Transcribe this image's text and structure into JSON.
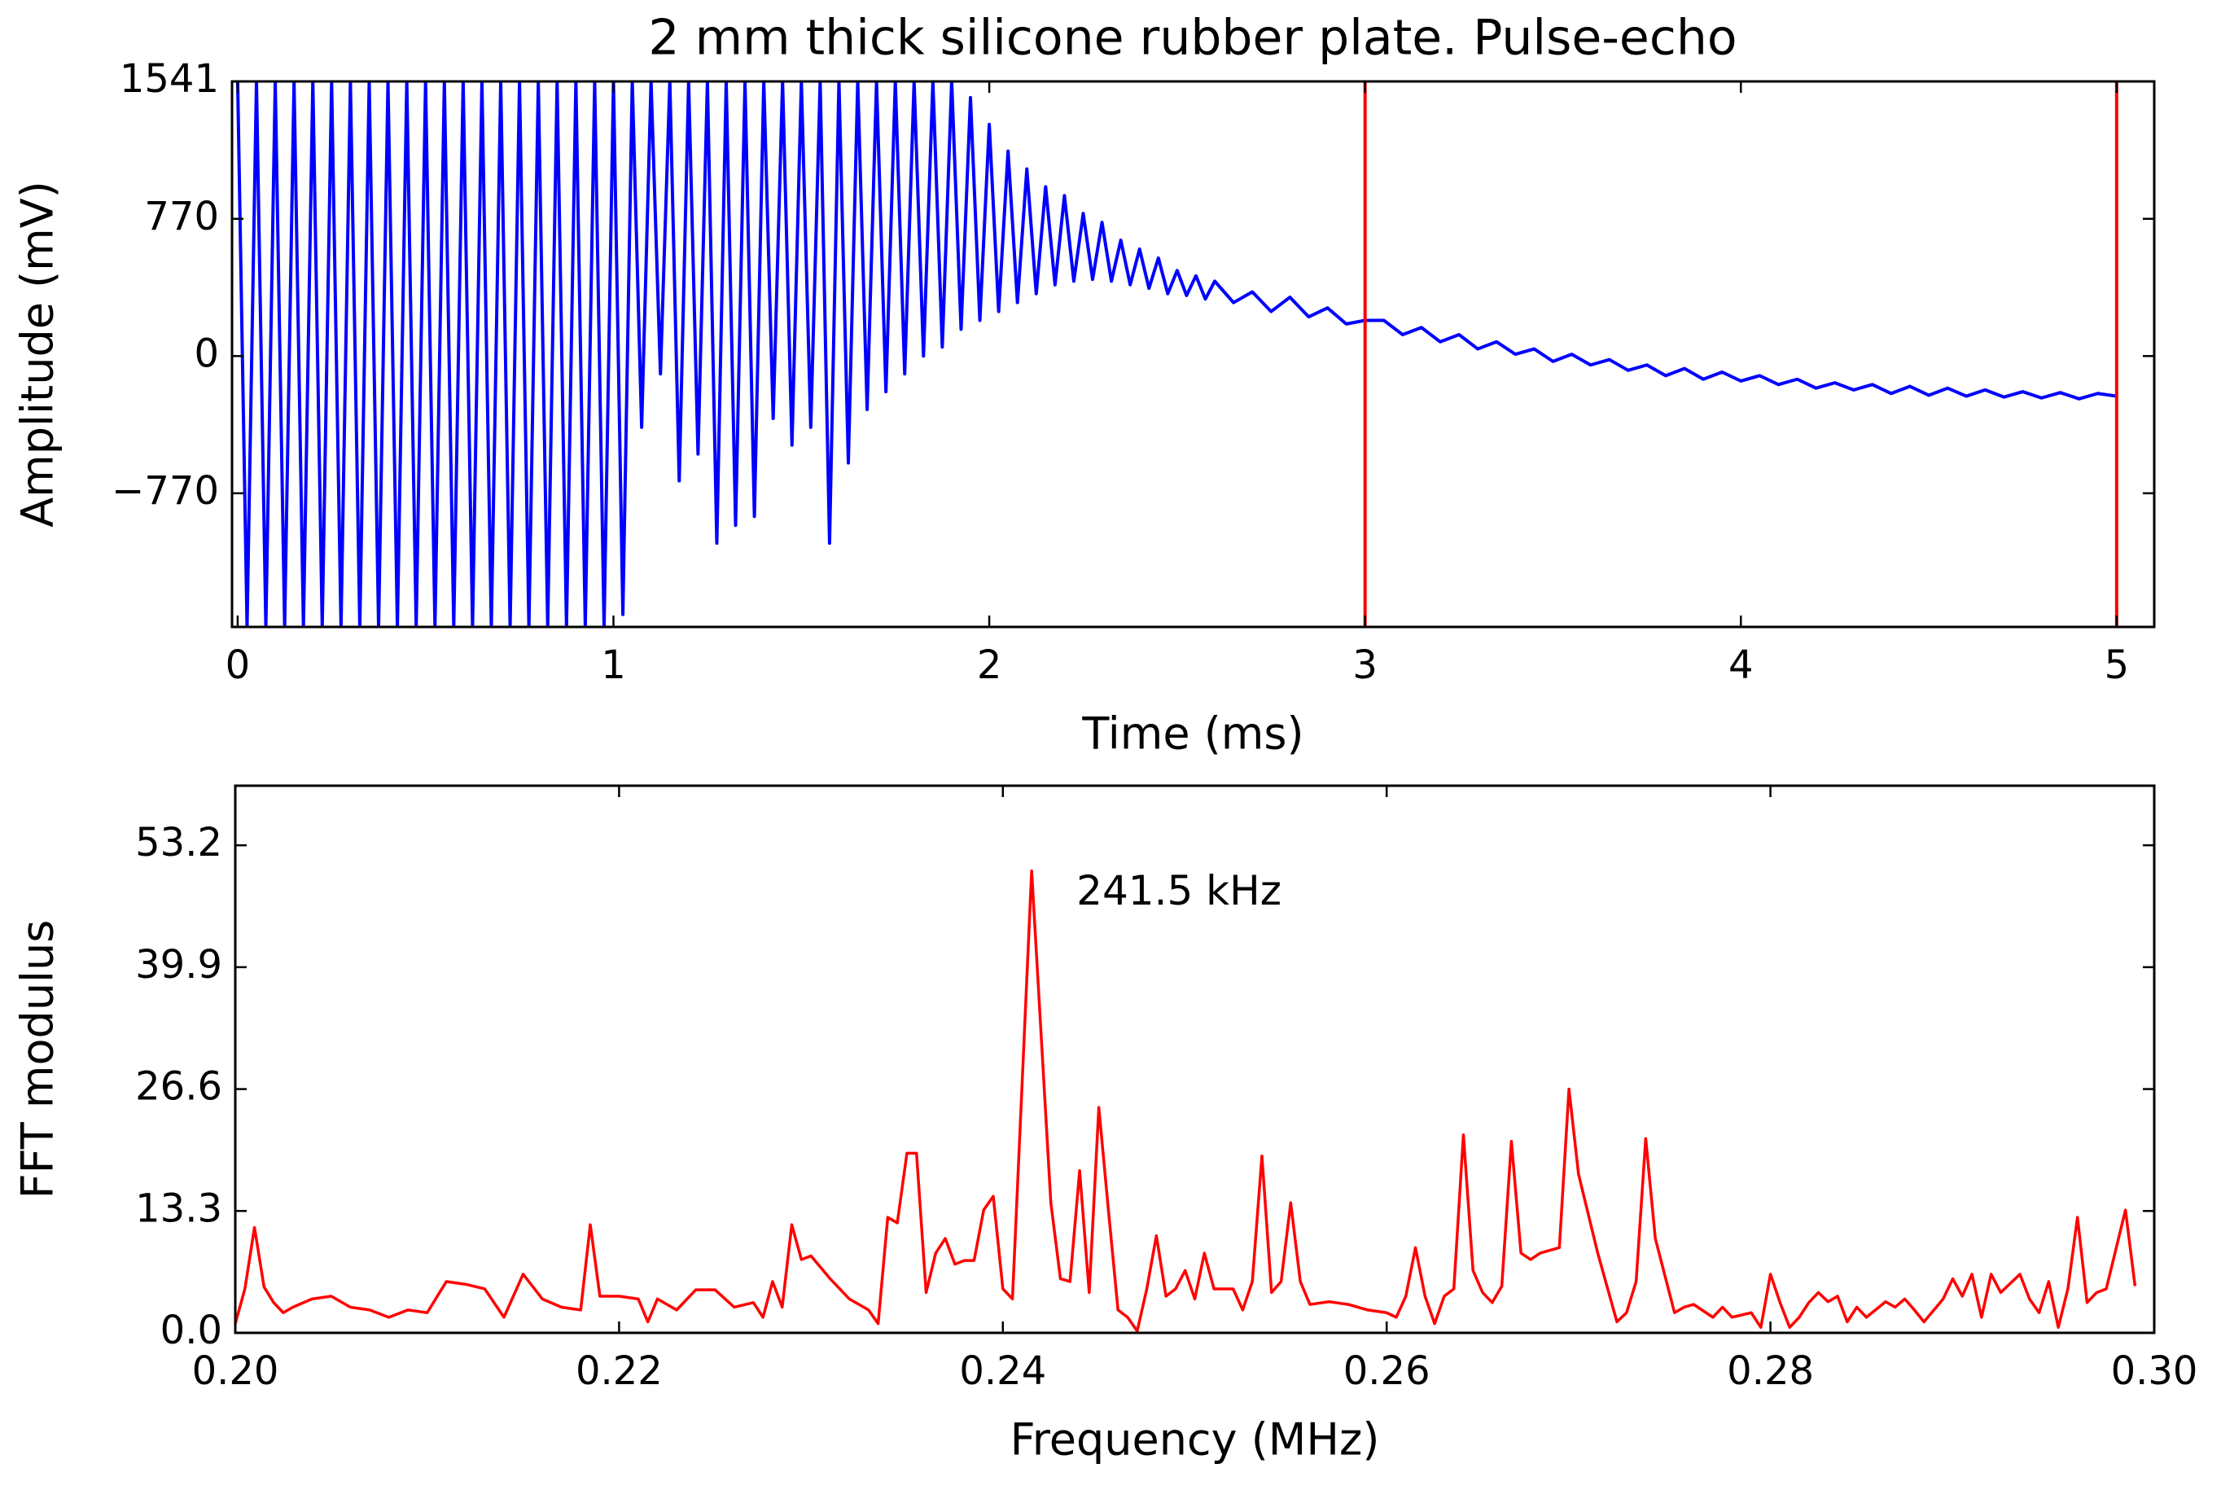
{
  "chart_data": [
    {
      "type": "line",
      "title": "2 mm thick silicone rubber plate. Pulse-echo",
      "xlabel": "Time (ms)",
      "ylabel": "Amplitude (mV)",
      "x": [
        0,
        0.025,
        0.05,
        0.075,
        0.1,
        0.125,
        0.15,
        0.175,
        0.2,
        0.225,
        0.25,
        0.275,
        0.3,
        0.325,
        0.35,
        0.375,
        0.4,
        0.425,
        0.45,
        0.475,
        0.5,
        0.525,
        0.55,
        0.575,
        0.6,
        0.625,
        0.65,
        0.675,
        0.7,
        0.725,
        0.75,
        0.775,
        0.8,
        0.825,
        0.85,
        0.875,
        0.9,
        0.925,
        0.95,
        0.975,
        1,
        1.025,
        1.05,
        1.075,
        1.1,
        1.125,
        1.15,
        1.175,
        1.2,
        1.225,
        1.25,
        1.275,
        1.3,
        1.325,
        1.35,
        1.375,
        1.4,
        1.425,
        1.45,
        1.475,
        1.5,
        1.525,
        1.55,
        1.575,
        1.6,
        1.625,
        1.65,
        1.675,
        1.7,
        1.725,
        1.75,
        1.775,
        1.8,
        1.825,
        1.85,
        1.875,
        1.9,
        1.925,
        1.95,
        1.975,
        2,
        2.025,
        2.05,
        2.075,
        2.1,
        2.125,
        2.15,
        2.175,
        2.2,
        2.225,
        2.25,
        2.275,
        2.3,
        2.325,
        2.35,
        2.375,
        2.4,
        2.425,
        2.45,
        2.475,
        2.5,
        2.525,
        2.55,
        2.575,
        2.6,
        2.65,
        2.7,
        2.75,
        2.8,
        2.85,
        2.9,
        2.95,
        3,
        3.05,
        3.1,
        3.15,
        3.2,
        3.25,
        3.3,
        3.35,
        3.4,
        3.45,
        3.5,
        3.55,
        3.6,
        3.65,
        3.7,
        3.75,
        3.8,
        3.85,
        3.9,
        3.95,
        4,
        4.05,
        4.1,
        4.15,
        4.2,
        4.25,
        4.3,
        4.35,
        4.4,
        4.45,
        4.5,
        4.55,
        4.6,
        4.65,
        4.7,
        4.75,
        4.8,
        4.85,
        4.9,
        4.95,
        5
      ],
      "series": [
        {
          "color": "#0000ff",
          "values": [
            1541,
            -1520,
            1541,
            -1520,
            1541,
            -1520,
            1541,
            -1520,
            1541,
            -1520,
            1541,
            -1520,
            1541,
            -1520,
            1541,
            -1520,
            1541,
            -1520,
            1541,
            -1520,
            1541,
            -1520,
            1541,
            -1520,
            1541,
            -1520,
            1541,
            -1520,
            1541,
            -1520,
            1541,
            -1520,
            1541,
            -1520,
            1541,
            -1520,
            1541,
            -1520,
            1541,
            -1520,
            1541,
            -1450,
            1541,
            -400,
            1541,
            -100,
            1541,
            -700,
            1541,
            -550,
            1541,
            -1050,
            1541,
            -950,
            1541,
            -900,
            1541,
            -350,
            1541,
            -500,
            1541,
            -400,
            1541,
            -1050,
            1541,
            -600,
            1541,
            -300,
            1541,
            -200,
            1541,
            -100,
            1541,
            0,
            1541,
            50,
            1541,
            150,
            1450,
            200,
            1300,
            250,
            1150,
            300,
            1050,
            350,
            950,
            400,
            900,
            420,
            800,
            430,
            750,
            420,
            650,
            400,
            600,
            380,
            550,
            350,
            480,
            340,
            450,
            320,
            420,
            300,
            360,
            250,
            330,
            220,
            270,
            180,
            200,
            200,
            120,
            160,
            80,
            120,
            40,
            80,
            10,
            40,
            -30,
            10,
            -50,
            -20,
            -80,
            -50,
            -110,
            -70,
            -130,
            -90,
            -140,
            -110,
            -160,
            -130,
            -180,
            -150,
            -190,
            -160,
            -210,
            -170,
            -220,
            -180,
            -225,
            -190,
            -230,
            -200,
            -235,
            -205,
            -240,
            -210,
            -225
          ]
        }
      ],
      "xlim": [
        -0.015,
        5.1
      ],
      "ylim": [
        -1520,
        1541
      ],
      "xticks": [
        0,
        1,
        2,
        3,
        4,
        5
      ],
      "yticks": [
        {
          "value": -770,
          "label": "−770"
        },
        0,
        770,
        1541
      ],
      "vlines": [
        3,
        5
      ],
      "vline_color": "#ff0000"
    },
    {
      "type": "line",
      "xlabel": "Frequency (MHz)",
      "ylabel": "FFT modulus",
      "annotation": "241.5 kHz",
      "x": [
        0.2,
        0.2005,
        0.201,
        0.2015,
        0.202,
        0.2025,
        0.203,
        0.204,
        0.205,
        0.206,
        0.207,
        0.208,
        0.209,
        0.21,
        0.211,
        0.212,
        0.213,
        0.214,
        0.215,
        0.216,
        0.217,
        0.218,
        0.2185,
        0.219,
        0.22,
        0.221,
        0.2215,
        0.222,
        0.223,
        0.224,
        0.225,
        0.226,
        0.227,
        0.2275,
        0.228,
        0.2285,
        0.229,
        0.2295,
        0.23,
        0.231,
        0.232,
        0.233,
        0.2335,
        0.234,
        0.2345,
        0.235,
        0.2355,
        0.236,
        0.2365,
        0.237,
        0.2375,
        0.238,
        0.2385,
        0.239,
        0.2395,
        0.24,
        0.2405,
        0.2415,
        0.2425,
        0.243,
        0.2435,
        0.244,
        0.2445,
        0.245,
        0.2455,
        0.246,
        0.2465,
        0.247,
        0.2475,
        0.248,
        0.2485,
        0.249,
        0.2495,
        0.25,
        0.2505,
        0.251,
        0.252,
        0.2525,
        0.253,
        0.2535,
        0.254,
        0.2545,
        0.255,
        0.2555,
        0.256,
        0.257,
        0.258,
        0.259,
        0.26,
        0.2605,
        0.261,
        0.2615,
        0.262,
        0.2625,
        0.263,
        0.2635,
        0.264,
        0.2645,
        0.265,
        0.2655,
        0.266,
        0.2665,
        0.267,
        0.2675,
        0.268,
        0.269,
        0.2695,
        0.27,
        0.271,
        0.272,
        0.2725,
        0.273,
        0.2735,
        0.274,
        0.275,
        0.2755,
        0.276,
        0.277,
        0.2775,
        0.278,
        0.279,
        0.2795,
        0.28,
        0.2805,
        0.281,
        0.2815,
        0.282,
        0.2825,
        0.283,
        0.2835,
        0.284,
        0.2845,
        0.285,
        0.286,
        0.2865,
        0.287,
        0.2875,
        0.288,
        0.289,
        0.2895,
        0.29,
        0.2905,
        0.291,
        0.2915,
        0.292,
        0.293,
        0.2935,
        0.294,
        0.2945,
        0.295,
        0.2955,
        0.296,
        0.2965,
        0.297,
        0.2975,
        0.2985,
        0.299
      ],
      "series": [
        {
          "color": "#ff0000",
          "values": [
            1,
            4.8,
            11.5,
            5,
            3.3,
            2.2,
            2.8,
            3.7,
            4,
            2.8,
            2.5,
            1.7,
            2.5,
            2.2,
            5.6,
            5.3,
            4.8,
            1.7,
            6.4,
            3.7,
            2.8,
            2.5,
            11.8,
            4,
            4,
            3.7,
            1.2,
            3.7,
            2.5,
            4.7,
            4.7,
            2.8,
            3.3,
            1.7,
            5.6,
            2.8,
            11.8,
            8,
            8.4,
            5.9,
            3.7,
            2.5,
            1,
            12.6,
            12,
            19.6,
            19.6,
            4.4,
            8.7,
            10.3,
            7.5,
            7.9,
            7.9,
            13.4,
            14.9,
            4.8,
            3.7,
            50.4,
            14.2,
            5.9,
            5.6,
            17.7,
            4.4,
            24.6,
            13.4,
            2.5,
            1.7,
            0.2,
            4.8,
            10.6,
            4,
            4.8,
            6.8,
            3.7,
            8.7,
            4.8,
            4.8,
            2.5,
            5.6,
            19.3,
            4.4,
            5.6,
            14.2,
            5.6,
            3.1,
            3.4,
            3.1,
            2.5,
            2.2,
            1.7,
            4,
            9.3,
            4,
            1,
            4,
            4.8,
            21.6,
            6.8,
            4.4,
            3.3,
            5.1,
            20.9,
            8.7,
            8,
            8.7,
            9.3,
            26.6,
            17.3,
            8.7,
            1.2,
            2.2,
            5.6,
            21.2,
            10.3,
            2.2,
            2.8,
            3.1,
            1.7,
            2.8,
            1.7,
            2.2,
            0.6,
            6.4,
            3.3,
            0.6,
            1.7,
            3.3,
            4.4,
            3.4,
            4,
            1.2,
            2.8,
            1.7,
            3.4,
            2.8,
            3.7,
            2.5,
            1.2,
            3.7,
            5.9,
            4,
            6.4,
            1.7,
            6.4,
            4.4,
            6.4,
            3.7,
            2.2,
            5.6,
            0.6,
            4.8,
            12.6,
            3.3,
            4.4,
            4.8,
            13.4,
            5.1
          ]
        }
      ],
      "xlim": [
        0.2,
        0.3
      ],
      "ylim": [
        0,
        59.7
      ],
      "xticks": [
        {
          "value": 0.2,
          "label": "0.20"
        },
        {
          "value": 0.22,
          "label": "0.22"
        },
        {
          "value": 0.24,
          "label": "0.24"
        },
        {
          "value": 0.26,
          "label": "0.26"
        },
        {
          "value": 0.28,
          "label": "0.28"
        },
        {
          "value": 0.3,
          "label": "0.30"
        }
      ],
      "yticks": [
        {
          "value": 0,
          "label": "0.0"
        },
        13.3,
        26.6,
        39.9,
        53.2
      ]
    }
  ]
}
